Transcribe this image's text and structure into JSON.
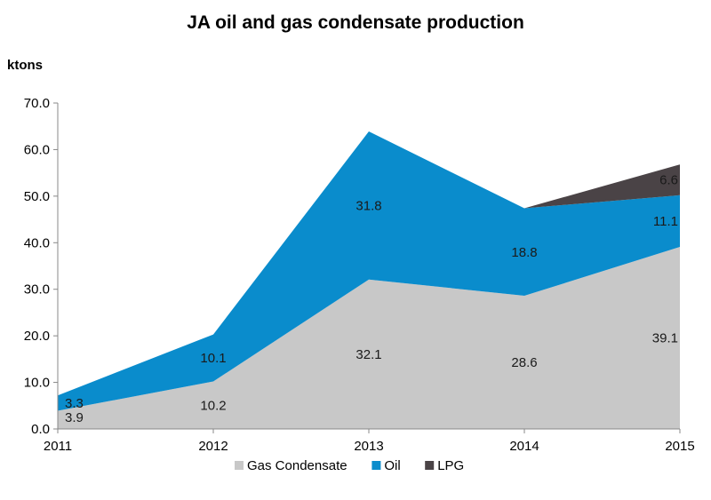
{
  "chart_data": {
    "type": "area",
    "stacked": true,
    "title": "JA oil and gas condensate production",
    "ylabel": "ktons",
    "xlabel": "",
    "categories": [
      "2011",
      "2012",
      "2013",
      "2014",
      "2015"
    ],
    "ylim": [
      0,
      70
    ],
    "yticks": [
      "0.0",
      "10.0",
      "20.0",
      "30.0",
      "40.0",
      "50.0",
      "60.0",
      "70.0"
    ],
    "grid": false,
    "legend_position": "bottom",
    "series": [
      {
        "name": "Gas Condensate",
        "color": "#c8c8c8",
        "values": [
          3.9,
          10.2,
          32.1,
          28.6,
          39.1
        ],
        "labels": [
          "3.9",
          "10.2",
          "32.1",
          "28.6",
          "39.1"
        ]
      },
      {
        "name": "Oil",
        "color": "#0a8ccc",
        "values": [
          3.3,
          10.1,
          31.8,
          18.8,
          11.1
        ],
        "labels": [
          "3.3",
          "10.1",
          "31.8",
          "18.8",
          "11.1"
        ]
      },
      {
        "name": "LPG",
        "color": "#4a4346",
        "values": [
          0,
          0,
          0,
          0,
          6.6
        ],
        "labels": [
          "",
          "",
          "",
          "",
          "6.6"
        ]
      }
    ]
  }
}
